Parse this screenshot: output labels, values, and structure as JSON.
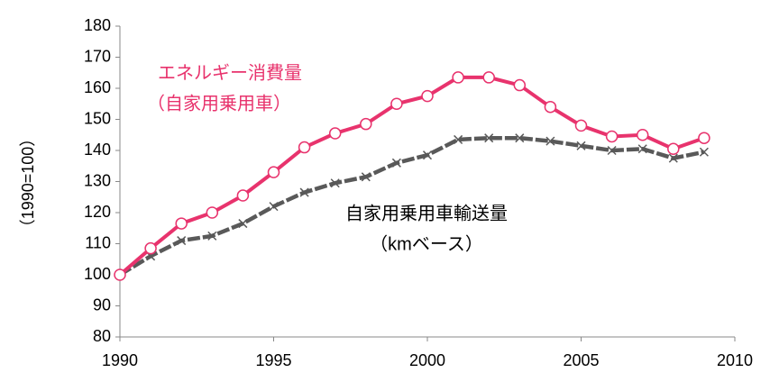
{
  "chart_data": {
    "type": "line",
    "y_label": "（1990=100）",
    "x": [
      1990,
      1991,
      1992,
      1993,
      1994,
      1995,
      1996,
      1997,
      1998,
      1999,
      2000,
      2001,
      2002,
      2003,
      2004,
      2005,
      2006,
      2007,
      2008,
      2009
    ],
    "series": [
      {
        "name": "エネルギー消費量（自家用乗用車）",
        "color": "#e8336d",
        "marker": "circle",
        "values": [
          100,
          108.5,
          116.5,
          120,
          125.5,
          133,
          141,
          145.5,
          148.5,
          155,
          157.5,
          163.5,
          163.5,
          161,
          154,
          148,
          144.5,
          145,
          140.5,
          144
        ]
      },
      {
        "name": "自家用乗用車輸送量（kmベース）",
        "color": "#595959",
        "marker": "x",
        "values": [
          100,
          106,
          111,
          112.5,
          116.5,
          122,
          126.5,
          129.5,
          131.5,
          136,
          138.5,
          143.5,
          144,
          144,
          143,
          141.5,
          140,
          140.5,
          137.5,
          139.5
        ]
      }
    ],
    "annotations": [
      {
        "text": "エネルギー消費量",
        "color": "#e8336d"
      },
      {
        "text": "（自家用乗用車）",
        "color": "#e8336d"
      },
      {
        "text": "自家用乗用車輸送量",
        "color": "#000000"
      },
      {
        "text": "（kmベース）",
        "color": "#000000"
      }
    ],
    "xlim": [
      1990,
      2010
    ],
    "xticks": [
      1990,
      1995,
      2000,
      2005,
      2010
    ],
    "ylim": [
      80,
      180
    ],
    "yticks": [
      80,
      90,
      100,
      110,
      120,
      130,
      140,
      150,
      160,
      170,
      180
    ],
    "grid": false
  }
}
